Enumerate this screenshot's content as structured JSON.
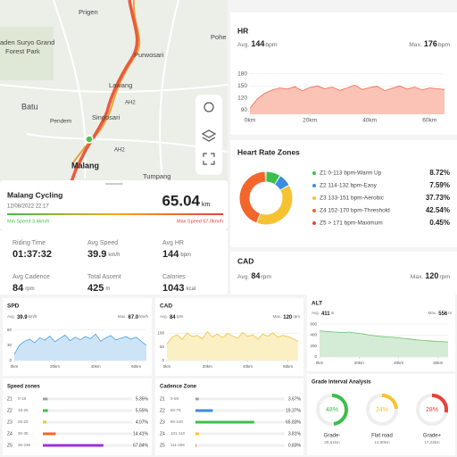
{
  "map": {
    "labels": [
      "Prigen",
      "aden Suryo Grand",
      "Forest Park",
      "Pohe",
      "Purwosari",
      "Lawang",
      "AH2",
      "Batu",
      "Singosari",
      "Pendem",
      "AH2",
      "Malang",
      "Tumpang"
    ]
  },
  "ride": {
    "title": "Malang Cycling",
    "date": "12/08/2022 22:17",
    "distance": "65.04",
    "distance_unit": "km",
    "min_speed": "Min Speed 3.4km/h",
    "max_speed": "Max Speed 67.0km/h"
  },
  "stats": [
    {
      "label": "Riding Time",
      "value": "01:37:32",
      "unit": ""
    },
    {
      "label": "Avg Speed",
      "value": "39.9",
      "unit": "km/h"
    },
    {
      "label": "Avg HR",
      "value": "144",
      "unit": "bpm"
    },
    {
      "label": "Avg Cadence",
      "value": "84",
      "unit": "rpm"
    },
    {
      "label": "Total Ascent",
      "value": "425",
      "unit": "m"
    },
    {
      "label": "Calories",
      "value": "1043",
      "unit": "kcal"
    }
  ],
  "hr": {
    "title": "HR",
    "avg_label": "Avg.",
    "avg": "144",
    "unit": "bpm",
    "max_label": "Max.",
    "max": "176",
    "chart": {
      "type": "area",
      "color": "#f06a50",
      "fill": "#fac3b5",
      "x": [
        0,
        2.5,
        5,
        7.5,
        10,
        12.5,
        15,
        17.5,
        20,
        22.5,
        25,
        27.5,
        30,
        32.5,
        35,
        37.5,
        40,
        42.5,
        45,
        47.5,
        50,
        52.5,
        55,
        57.5,
        60,
        62.5,
        65
      ],
      "values": [
        95,
        118,
        132,
        140,
        145,
        142,
        148,
        138,
        146,
        150,
        143,
        147,
        139,
        145,
        152,
        141,
        146,
        149,
        138,
        144,
        150,
        142,
        147,
        140,
        145,
        143,
        141
      ],
      "xlim": [
        0,
        65
      ],
      "ylim": [
        80,
        190
      ],
      "yticks": [
        90,
        120,
        150,
        180
      ],
      "xticks": [
        {
          "value": 0,
          "label": "0km"
        },
        {
          "value": 20,
          "label": "20km"
        },
        {
          "value": 40,
          "label": "40km"
        },
        {
          "value": 60,
          "label": "60km"
        }
      ]
    }
  },
  "hr_zones": {
    "title": "Heart Rate Zones",
    "chart": {
      "type": "pie",
      "labels": [
        "Z1  0-113  bpm-Warm Up",
        "Z2  114-132  bpm-Easy",
        "Z3  133-151  bpm-Aerobic",
        "Z4  152-170  bpm-Threshold",
        "Z5  > 171  bpm-Maximum"
      ],
      "colors": [
        "#3cbf4a",
        "#3a8de0",
        "#f5c332",
        "#f2662b",
        "#e8413a"
      ],
      "values": [
        8.72,
        7.59,
        37.73,
        42.54,
        0.45
      ],
      "value_labels": [
        "8.72%",
        "7.59%",
        "37.73%",
        "42.54%",
        "0.45%"
      ]
    }
  },
  "cad": {
    "title": "CAD",
    "avg_label": "Avg.",
    "avg": "84",
    "unit": "rpm",
    "max_label": "Max.",
    "max": "120"
  },
  "spd_panel": {
    "title": "SPD",
    "avg_label": "Avg.",
    "avg": "39.9",
    "unit": "km/h",
    "max_label": "Max.",
    "max": "67.0",
    "chart": {
      "type": "area",
      "color": "#4a9fe3",
      "fill": "#cde4f7",
      "x": [
        0,
        2.5,
        5,
        7.5,
        10,
        12.5,
        15,
        17.5,
        20,
        22.5,
        25,
        27.5,
        30,
        32.5,
        35,
        37.5,
        40,
        42.5,
        45,
        47.5,
        50,
        52.5,
        55,
        57.5,
        60,
        62.5,
        65
      ],
      "values": [
        12,
        30,
        38,
        42,
        35,
        45,
        40,
        48,
        37,
        44,
        50,
        39,
        46,
        41,
        47,
        43,
        52,
        38,
        45,
        49,
        40,
        44,
        47,
        42,
        46,
        38,
        30
      ],
      "xlim": [
        0,
        65
      ],
      "ylim": [
        0,
        70
      ],
      "yticks": [
        0,
        30,
        60
      ],
      "xticks": [
        {
          "value": 0,
          "label": "0km"
        },
        {
          "value": 20,
          "label": "20km"
        },
        {
          "value": 40,
          "label": "40km"
        },
        {
          "value": 60,
          "label": "60km"
        }
      ]
    }
  },
  "cad_panel": {
    "title": "CAD",
    "avg_label": "Avg.",
    "avg": "84",
    "unit": "rpm",
    "max_label": "Max.",
    "max": "120",
    "chart": {
      "type": "area",
      "color": "#efc23c",
      "fill": "#fbefc4",
      "x": [
        0,
        2.5,
        5,
        7.5,
        10,
        12.5,
        15,
        17.5,
        20,
        22.5,
        25,
        27.5,
        30,
        32.5,
        35,
        37.5,
        40,
        42.5,
        45,
        47.5,
        50,
        52.5,
        55,
        57.5,
        60,
        62.5,
        65
      ],
      "values": [
        60,
        85,
        95,
        78,
        100,
        88,
        92,
        80,
        105,
        86,
        97,
        84,
        99,
        90,
        82,
        102,
        88,
        94,
        79,
        96,
        89,
        101,
        85,
        92,
        87,
        80,
        70
      ],
      "xlim": [
        0,
        65
      ],
      "ylim": [
        0,
        130
      ],
      "yticks": [
        0,
        50,
        100
      ],
      "xticks": [
        {
          "value": 0,
          "label": "0km"
        },
        {
          "value": 20,
          "label": "20km"
        },
        {
          "value": 40,
          "label": "40km"
        },
        {
          "value": 60,
          "label": "60km"
        }
      ]
    }
  },
  "alt_panel": {
    "title": "ALT",
    "avg_label": "Avg.",
    "avg": "411",
    "unit": "m",
    "max_label": "Max.",
    "max": "556",
    "chart": {
      "type": "area",
      "color": "#6fbd73",
      "fill": "#d4ecd5",
      "x": [
        0,
        2.5,
        5,
        7.5,
        10,
        12.5,
        15,
        17.5,
        20,
        22.5,
        25,
        27.5,
        30,
        32.5,
        35,
        37.5,
        40,
        42.5,
        45,
        47.5,
        50,
        52.5,
        55,
        57.5,
        60,
        62.5,
        65
      ],
      "values": [
        480,
        470,
        460,
        455,
        450,
        445,
        455,
        440,
        430,
        420,
        400,
        390,
        380,
        370,
        365,
        360,
        350,
        340,
        330,
        320,
        310,
        300,
        295,
        290,
        285,
        280,
        275
      ],
      "xlim": [
        0,
        65
      ],
      "ylim": [
        0,
        650
      ],
      "yticks": [
        0,
        200,
        400,
        600
      ],
      "xticks": [
        {
          "value": 0,
          "label": "0km"
        },
        {
          "value": 20,
          "label": "20km"
        },
        {
          "value": 40,
          "label": "40km"
        },
        {
          "value": 60,
          "label": "60km"
        }
      ]
    }
  },
  "speed_zones": {
    "title": "Speed zones",
    "names": [
      "Z1",
      "Z2",
      "Z3",
      "Z4",
      "Z5"
    ],
    "ranges": [
      "0-18",
      "18-25",
      "25-29",
      "30-35",
      "35-239"
    ],
    "values": [
      5.35,
      5.55,
      4.07,
      14.41,
      67.84
    ],
    "value_labels": [
      "5.35%",
      "5.55%",
      "4.07%",
      "14.41%",
      "67.84%"
    ],
    "colors": [
      "#9aa0a6",
      "#3cbf4a",
      "#f5c332",
      "#f2662b",
      "#9b30d9"
    ],
    "xlim": [
      0,
      100
    ]
  },
  "cadence_zones": {
    "title": "Cadence Zone",
    "names": [
      "Z1",
      "Z2",
      "Z3",
      "Z4",
      "Z5"
    ],
    "ranges": [
      "0-59",
      "60-79",
      "80-100",
      "101-110",
      "111-255"
    ],
    "values": [
      3.67,
      19.37,
      65.83,
      3.81,
      0.83
    ],
    "value_labels": [
      "3.67%",
      "19.37%",
      "65.83%",
      "3.81%",
      "0.83%"
    ],
    "colors": [
      "#9aa0a6",
      "#3a8de0",
      "#3cbf4a",
      "#f5c332",
      "#f2662b"
    ],
    "xlim": [
      0,
      100
    ]
  },
  "grade": {
    "title": "Grade Interval Analysis",
    "labels": [
      "Grade-",
      "Flat road",
      "Grade+"
    ],
    "values": [
      48,
      24,
      28
    ],
    "value_labels": [
      "48%",
      "24%",
      "28%"
    ],
    "distances": [
      "29.51km",
      "14.90km",
      "17.23km"
    ],
    "colors": [
      "#3cbf4a",
      "#f5c332",
      "#e8413a"
    ]
  }
}
